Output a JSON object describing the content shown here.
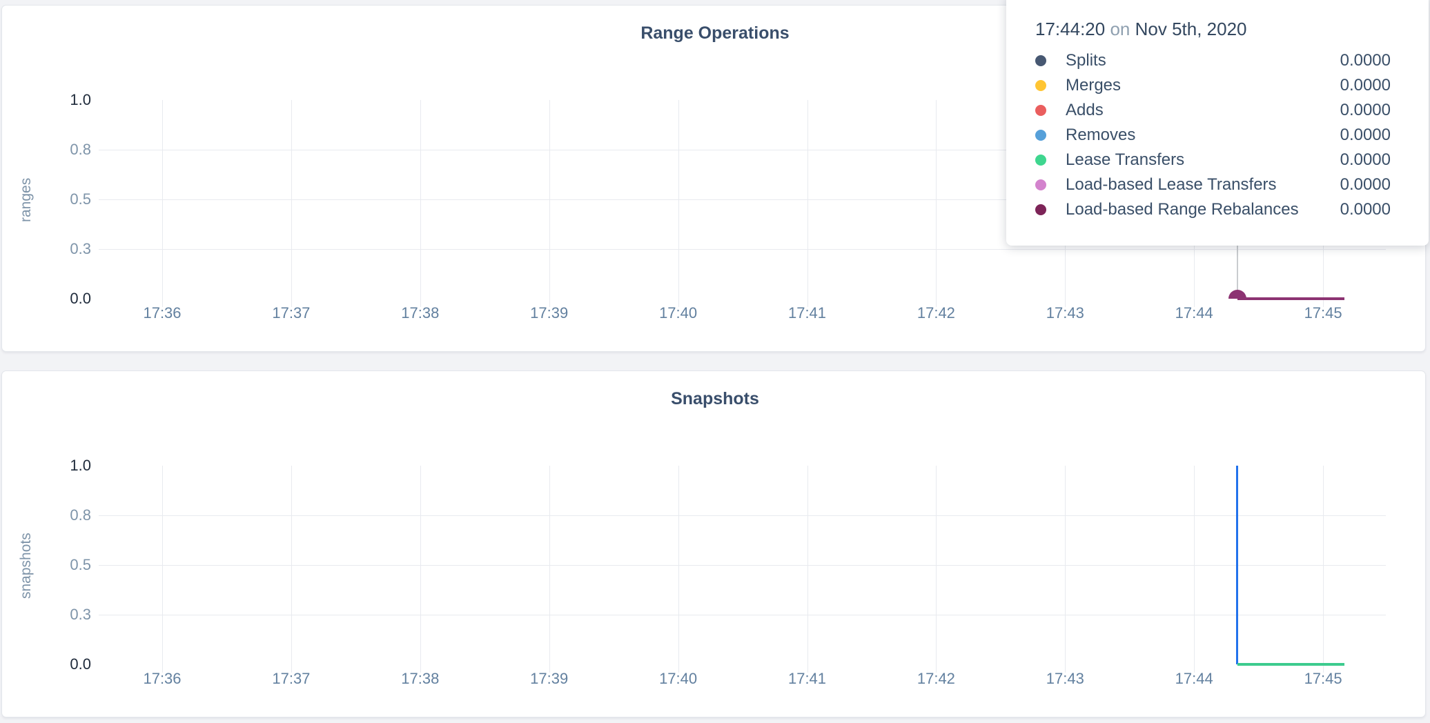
{
  "page": {
    "background_color": "#f2f3f6",
    "card_color": "#ffffff"
  },
  "tooltip": {
    "time": "17:44:20",
    "connector": "on",
    "date": "Nov 5th, 2020",
    "rows": [
      {
        "label": "Splits",
        "value": "0.0000",
        "color": "#475872"
      },
      {
        "label": "Merges",
        "value": "0.0000",
        "color": "#ffc533"
      },
      {
        "label": "Adds",
        "value": "0.0000",
        "color": "#ea5e5e"
      },
      {
        "label": "Removes",
        "value": "0.0000",
        "color": "#56a0d9"
      },
      {
        "label": "Lease Transfers",
        "value": "0.0000",
        "color": "#3fd68f"
      },
      {
        "label": "Load-based Lease Transfers",
        "value": "0.0000",
        "color": "#d383cd"
      },
      {
        "label": "Load-based Range Rebalances",
        "value": "0.0000",
        "color": "#7d2458"
      }
    ]
  },
  "chart_data": [
    {
      "type": "line",
      "title": "Range Operations",
      "xlabel": "",
      "ylabel": "ranges",
      "ylim": [
        0,
        1
      ],
      "grid": true,
      "legend_position": "tooltip-on-hover",
      "x_ticks": [
        "17:36",
        "17:37",
        "17:38",
        "17:39",
        "17:40",
        "17:41",
        "17:42",
        "17:43",
        "17:44",
        "17:45"
      ],
      "y_ticks": [
        {
          "label": "1.0",
          "value": 1.0
        },
        {
          "label": "0.8",
          "value": 0.75
        },
        {
          "label": "0.5",
          "value": 0.5
        },
        {
          "label": "0.3",
          "value": 0.25
        },
        {
          "label": "0.0",
          "value": 0.0
        }
      ],
      "series": [
        {
          "name": "Load-based Range Rebalances",
          "color": "#8c3372",
          "points": [
            {
              "t": "17:44:20",
              "v": 0.0
            },
            {
              "t": "17:45:10",
              "v": 0.0
            }
          ]
        }
      ],
      "hover": {
        "t": "17:44:20",
        "dot_color": "#8c3372",
        "dot_value": 0.0
      }
    },
    {
      "type": "line",
      "title": "Snapshots",
      "xlabel": "",
      "ylabel": "snapshots",
      "ylim": [
        0,
        1
      ],
      "grid": true,
      "x_ticks": [
        "17:36",
        "17:37",
        "17:38",
        "17:39",
        "17:40",
        "17:41",
        "17:42",
        "17:43",
        "17:44",
        "17:45"
      ],
      "y_ticks": [
        {
          "label": "1.0",
          "value": 1.0
        },
        {
          "label": "0.8",
          "value": 0.75
        },
        {
          "label": "0.5",
          "value": 0.5
        },
        {
          "label": "0.3",
          "value": 0.25
        },
        {
          "label": "0.0",
          "value": 0.0
        }
      ],
      "series": [
        {
          "color": "#2272ec",
          "points": [
            {
              "t": "17:44:20",
              "v": 1.0
            },
            {
              "t": "17:44:21",
              "v": 0.0
            }
          ]
        },
        {
          "color": "#3dcb8e",
          "points": [
            {
              "t": "17:44:20",
              "v": 0.0
            },
            {
              "t": "17:45:10",
              "v": 0.0
            }
          ]
        }
      ]
    }
  ]
}
